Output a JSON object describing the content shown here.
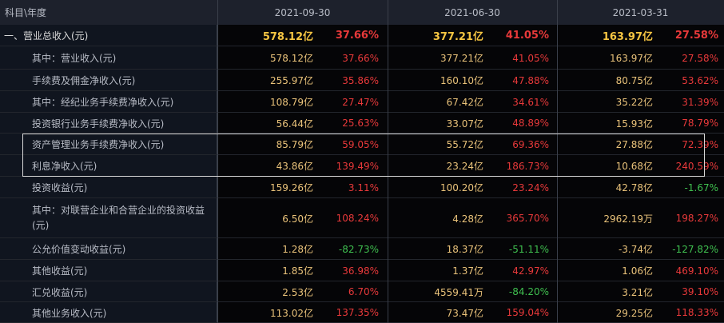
{
  "header": {
    "label": "科目\\年度",
    "periods": [
      "2021-09-30",
      "2021-06-30",
      "2021-03-31"
    ]
  },
  "rows": [
    {
      "label": "一、营业总收入(元)",
      "cells": [
        [
          "578.12亿",
          "37.66%"
        ],
        [
          "377.21亿",
          "41.05%"
        ],
        [
          "163.97亿",
          "27.58%"
        ]
      ]
    },
    {
      "label": "其中：营业收入(元)",
      "cells": [
        [
          "578.12亿",
          "37.66%"
        ],
        [
          "377.21亿",
          "41.05%"
        ],
        [
          "163.97亿",
          "27.58%"
        ]
      ]
    },
    {
      "label": "手续费及佣金净收入(元)",
      "cells": [
        [
          "255.97亿",
          "35.86%"
        ],
        [
          "160.10亿",
          "47.88%"
        ],
        [
          "80.75亿",
          "53.62%"
        ]
      ]
    },
    {
      "label": "其中：经纪业务手续费净收入(元)",
      "cells": [
        [
          "108.79亿",
          "27.47%"
        ],
        [
          "67.42亿",
          "34.61%"
        ],
        [
          "35.22亿",
          "31.39%"
        ]
      ]
    },
    {
      "label": "投资银行业务手续费净收入(元)",
      "cells": [
        [
          "56.44亿",
          "25.63%"
        ],
        [
          "33.07亿",
          "48.89%"
        ],
        [
          "15.93亿",
          "78.79%"
        ]
      ]
    },
    {
      "label": "资产管理业务手续费净收入(元)",
      "cells": [
        [
          "85.79亿",
          "59.05%"
        ],
        [
          "55.72亿",
          "69.36%"
        ],
        [
          "27.88亿",
          "72.39%"
        ]
      ]
    },
    {
      "label": "利息净收入(元)",
      "cells": [
        [
          "43.86亿",
          "139.49%"
        ],
        [
          "23.24亿",
          "186.73%"
        ],
        [
          "10.68亿",
          "240.59%"
        ]
      ]
    },
    {
      "label": "投资收益(元)",
      "cells": [
        [
          "159.26亿",
          "3.11%"
        ],
        [
          "100.20亿",
          "23.24%"
        ],
        [
          "42.78亿",
          "-1.67%"
        ]
      ]
    },
    {
      "label": "其中：对联营企业和合营企业的投资收益(元)",
      "cells": [
        [
          "6.50亿",
          "108.24%"
        ],
        [
          "4.28亿",
          "365.70%"
        ],
        [
          "2962.19万",
          "198.27%"
        ]
      ]
    },
    {
      "label": "公允价值变动收益(元)",
      "cells": [
        [
          "1.28亿",
          "-82.73%"
        ],
        [
          "18.37亿",
          "-51.11%"
        ],
        [
          "-3.74亿",
          "-127.82%"
        ]
      ]
    },
    {
      "label": "其他收益(元)",
      "cells": [
        [
          "1.85亿",
          "36.98%"
        ],
        [
          "1.37亿",
          "42.97%"
        ],
        [
          "1.06亿",
          "469.10%"
        ]
      ]
    },
    {
      "label": "汇兑收益(元)",
      "cells": [
        [
          "2.53亿",
          "6.70%"
        ],
        [
          "4559.41万",
          "-84.20%"
        ],
        [
          "3.21亿",
          "39.10%"
        ]
      ]
    },
    {
      "label": "其他业务收入(元)",
      "cells": [
        [
          "113.02亿",
          "137.35%"
        ],
        [
          "73.47亿",
          "159.04%"
        ],
        [
          "29.25亿",
          "118.33%"
        ]
      ]
    }
  ]
}
